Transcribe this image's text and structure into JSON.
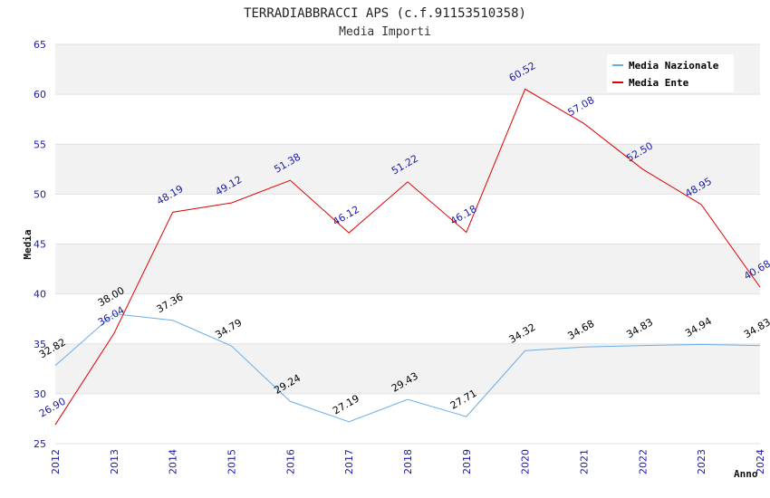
{
  "chart_data": {
    "type": "line",
    "title": "TERRADIABBRACCI APS (c.f.91153510358)",
    "subtitle": "Media Importi",
    "xlabel": "Anno",
    "ylabel": "Media",
    "x": [
      "2012",
      "2013",
      "2014",
      "2015",
      "2016",
      "2017",
      "2018",
      "2019",
      "2020",
      "2021",
      "2022",
      "2023",
      "2024"
    ],
    "ylim": [
      25,
      65
    ],
    "yticks": [
      25,
      30,
      35,
      40,
      45,
      50,
      55,
      60,
      65
    ],
    "yticks_text": [
      "25",
      "30",
      "35",
      "40",
      "45",
      "50",
      "55",
      "60",
      "65"
    ],
    "grid": "horizontal banded",
    "legend_position": "top-right",
    "series": [
      {
        "name": "Media Nazionale",
        "color": "#6aaee8",
        "label_color": "#000000",
        "values": [
          32.82,
          38.0,
          37.36,
          34.79,
          29.24,
          27.19,
          29.43,
          27.71,
          34.32,
          34.68,
          34.83,
          34.94,
          34.83
        ],
        "labels": [
          "32.82",
          "38.00",
          "37.36",
          "34.79",
          "29.24",
          "27.19",
          "29.43",
          "27.71",
          "34.32",
          "34.68",
          "34.83",
          "34.94",
          "34.83"
        ]
      },
      {
        "name": "Media Ente",
        "color": "#e00000",
        "label_color": "#1a1aa8",
        "values": [
          26.9,
          36.04,
          48.19,
          49.12,
          51.38,
          46.12,
          51.22,
          46.18,
          60.52,
          57.08,
          52.5,
          48.95,
          40.68
        ],
        "labels": [
          "26.90",
          "36.04",
          "48.19",
          "49.12",
          "51.38",
          "46.12",
          "51.22",
          "46.18",
          "60.52",
          "57.08",
          "52.50",
          "48.95",
          "40.68"
        ]
      }
    ]
  }
}
